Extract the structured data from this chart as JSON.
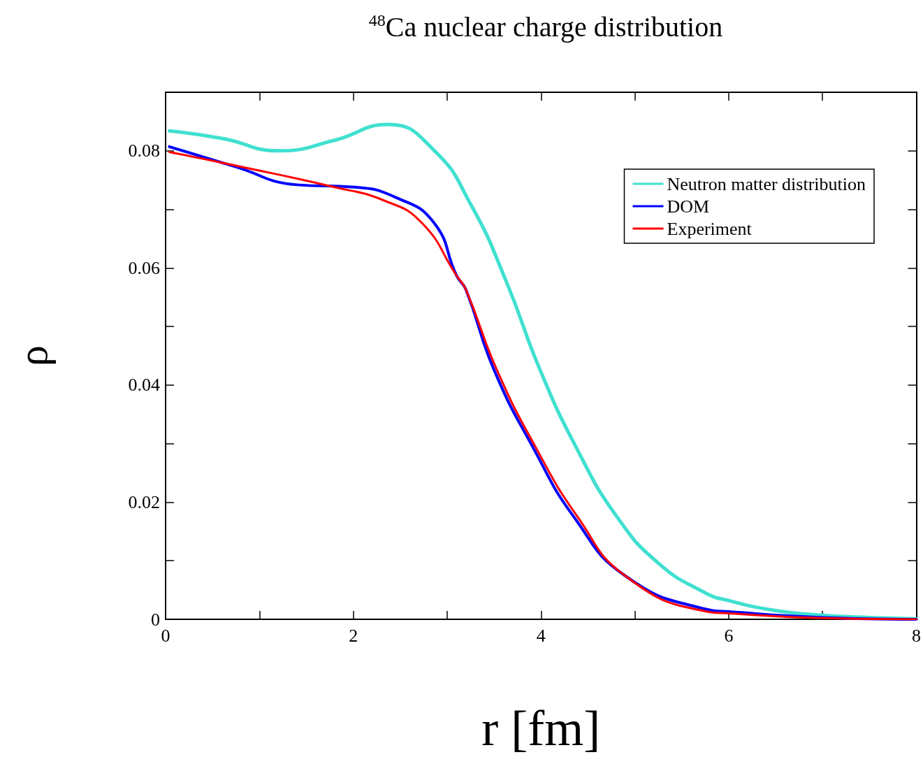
{
  "chart_data": {
    "type": "line",
    "title": "$^{48}$Ca nuclear charge distribution",
    "xlabel": "r [fm]",
    "ylabel": "ρ",
    "xlim": [
      0,
      8
    ],
    "xticks": [
      0,
      {
        "value": 1,
        "label": null
      },
      2,
      {
        "value": 3,
        "label": null
      },
      4,
      {
        "value": 5,
        "label": null
      },
      6,
      {
        "value": 7,
        "label": null
      },
      8
    ],
    "ylim": [
      0,
      0.09
    ],
    "yticks": [
      0,
      {
        "value": 0.01,
        "label": null
      },
      0.02,
      {
        "value": 0.03,
        "label": null
      },
      0.04,
      {
        "value": 0.05,
        "label": null
      },
      0.06,
      {
        "value": 0.07,
        "label": null
      },
      0.08
    ],
    "grid": false,
    "legend": "top right",
    "marker": "none",
    "line_style": "solid",
    "series": [
      {
        "name": "Neutron matter distribution",
        "color": "#40e0d0",
        "x": [
          0.04,
          0.61,
          1.21,
          1.8,
          2.37,
          2.86,
          3.26,
          3.63,
          3.99,
          4.39,
          4.81,
          5.25,
          5.74,
          6.0,
          6.5,
          6.99,
          7.5,
          8.0
        ],
        "values": [
          0.0834,
          0.0821,
          0.08,
          0.0818,
          0.0845,
          0.0801,
          0.0706,
          0.0577,
          0.0426,
          0.0289,
          0.0175,
          0.0096,
          0.0046,
          0.0032,
          0.0015,
          0.0007,
          0.0003,
          0.0001
        ]
      },
      {
        "name": "DOM",
        "color": "#0000ff",
        "x": [
          0.04,
          0.74,
          1.4,
          2.01,
          2.46,
          2.86,
          3.1,
          3.2,
          3.5,
          3.93,
          4.35,
          4.9,
          5.74,
          6.0,
          7.0,
          8.0
        ],
        "values": [
          0.0807,
          0.0773,
          0.0742,
          0.0738,
          0.072,
          0.0677,
          0.0587,
          0.0563,
          0.0426,
          0.0289,
          0.0175,
          0.0074,
          0.0018,
          0.0013,
          0.0003,
          0.0
        ]
      },
      {
        "name": "Experiment",
        "color": "#ff0000",
        "x": [
          0.04,
          0.74,
          1.8,
          2.33,
          2.73,
          3.1,
          3.2,
          3.53,
          3.96,
          4.39,
          4.9,
          5.74,
          6.0,
          7.0,
          8.0
        ],
        "values": [
          0.0798,
          0.0775,
          0.0738,
          0.0715,
          0.0677,
          0.0587,
          0.0563,
          0.0426,
          0.0289,
          0.0175,
          0.0074,
          0.0014,
          0.001,
          0.0002,
          0.0
        ]
      }
    ]
  }
}
